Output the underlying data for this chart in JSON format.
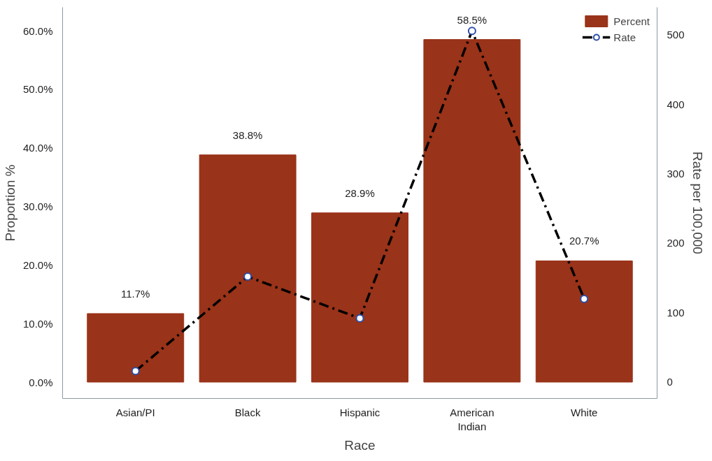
{
  "chart_data": {
    "type": "bar",
    "xlabel": "Race",
    "ylabel": "Proportion %",
    "y2label": "Rate per 100,000",
    "categories": [
      "Asian/PI",
      "Black",
      "Hispanic",
      "American Indian",
      "White"
    ],
    "series": [
      {
        "name": "Percent",
        "color": "#993319",
        "values": [
          11.7,
          38.8,
          28.9,
          58.5,
          20.7
        ],
        "value_labels": [
          "11.7%",
          "38.8%",
          "28.9%",
          "58.5%",
          "20.7%"
        ]
      },
      {
        "name": "Rate",
        "type": "line",
        "axis": "y2",
        "color": "#000000",
        "values": [
          16,
          152,
          92,
          506,
          120
        ],
        "marker": "circle",
        "line_style": "dashdot"
      }
    ],
    "ylim": [
      -2.8,
      64
    ],
    "yticks": [
      {
        "value": 0,
        "label": "0.0%"
      },
      {
        "value": 10,
        "label": "10.0%"
      },
      {
        "value": 20,
        "label": "20.0%"
      },
      {
        "value": 30,
        "label": "30.0%"
      },
      {
        "value": 40,
        "label": "40.0%"
      },
      {
        "value": 50,
        "label": "50.0%"
      },
      {
        "value": 60,
        "label": "60.0%"
      }
    ],
    "y2lim": [
      -23.5,
      540
    ],
    "y2ticks": [
      0,
      100,
      200,
      300,
      400,
      500
    ],
    "grid": false,
    "legend": "top right"
  }
}
